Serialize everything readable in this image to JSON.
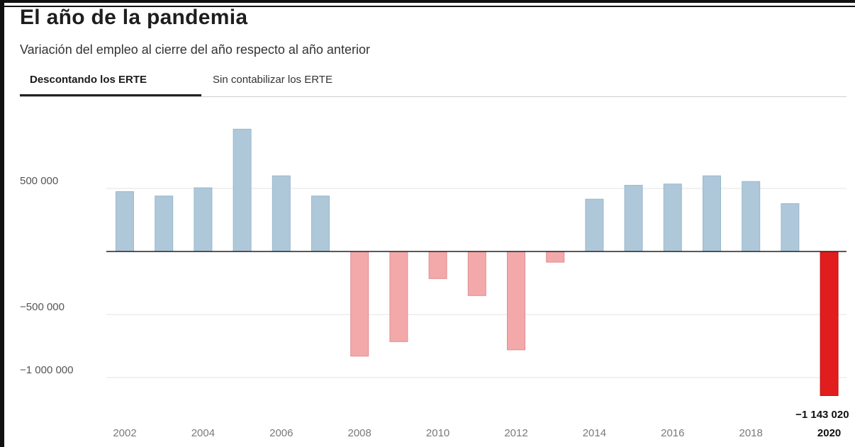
{
  "header": {
    "title": "El año de la pandemia",
    "subtitle": "Variación del empleo al cierre del año respecto al año anterior"
  },
  "tabs": [
    {
      "label": "Descontando los ERTE",
      "active": true
    },
    {
      "label": "Sin contabilizar los ERTE",
      "active": false
    }
  ],
  "colors": {
    "positive": "#aec8da",
    "negative": "#f3a8aa",
    "highlight": "#e21d1d",
    "zero_line": "#222222",
    "grid": "#e3e3e3",
    "tick_text": "#7a7a7a"
  },
  "chart_data": {
    "type": "bar",
    "title": "El año de la pandemia",
    "subtitle": "Variación del empleo al cierre del año respecto al año anterior",
    "xlabel": "",
    "ylabel": "",
    "categories": [
      "2002",
      "2003",
      "2004",
      "2005",
      "2006",
      "2007",
      "2008",
      "2009",
      "2010",
      "2011",
      "2012",
      "2013",
      "2014",
      "2015",
      "2016",
      "2017",
      "2018",
      "2019",
      "2020"
    ],
    "values": [
      475000,
      440000,
      505000,
      970000,
      600000,
      440000,
      -830000,
      -715000,
      -215000,
      -350000,
      -780000,
      -85000,
      415000,
      525000,
      535000,
      600000,
      555000,
      380000,
      -1143020
    ],
    "ylim": [
      -1200000,
      1000000
    ],
    "yticks": [
      500000,
      -500000,
      -1000000
    ],
    "ytick_labels": [
      "500 000",
      "−500 000",
      "−1 000 000"
    ],
    "xtick_labels": [
      "2002",
      "2004",
      "2006",
      "2008",
      "2010",
      "2012",
      "2014",
      "2016",
      "2018",
      "2020"
    ],
    "highlight": {
      "category": "2020",
      "label": "−1 143 020"
    },
    "grid": true,
    "legend": "none"
  }
}
